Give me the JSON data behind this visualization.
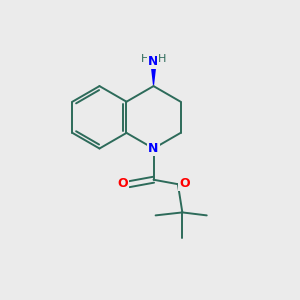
{
  "background_color": "#ebebeb",
  "bond_color": "#2d6b5a",
  "n_color": "#0000ff",
  "o_color": "#ff0000",
  "h_color": "#2d6b5a",
  "figsize": [
    3.0,
    3.0
  ],
  "dpi": 100,
  "bond_lw": 1.4,
  "xlim": [
    0,
    10
  ],
  "ylim": [
    0,
    10
  ]
}
